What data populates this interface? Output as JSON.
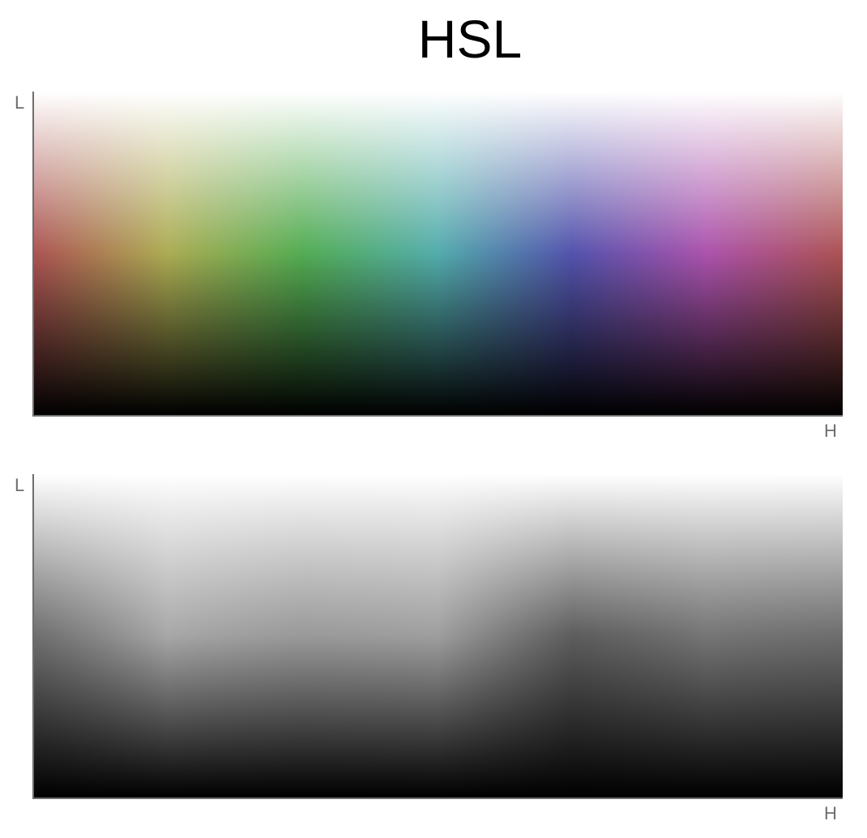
{
  "title": "HSL",
  "chart_data": [
    {
      "type": "heatmap",
      "mode": "color",
      "xlabel": "H",
      "ylabel": "L",
      "x_range": [
        0,
        360
      ],
      "y_range": [
        0,
        1
      ],
      "saturation": 0.35
    },
    {
      "type": "heatmap",
      "mode": "grayscale",
      "xlabel": "H",
      "ylabel": "L",
      "x_range": [
        0,
        360
      ],
      "y_range": [
        0,
        1
      ],
      "saturation": 0.35
    }
  ]
}
